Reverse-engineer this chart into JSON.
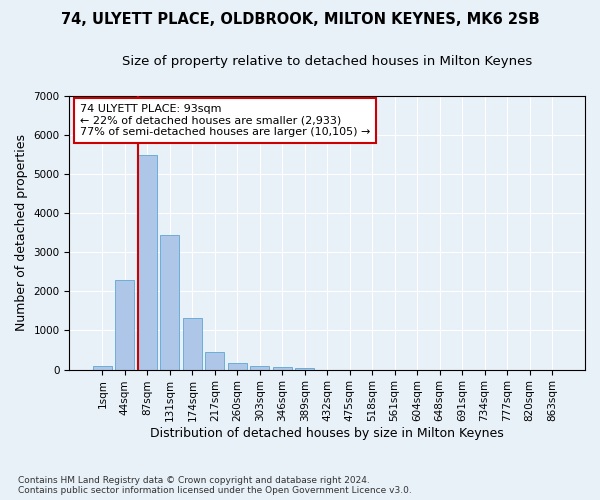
{
  "title1": "74, ULYETT PLACE, OLDBROOK, MILTON KEYNES, MK6 2SB",
  "title2": "Size of property relative to detached houses in Milton Keynes",
  "xlabel": "Distribution of detached houses by size in Milton Keynes",
  "ylabel": "Number of detached properties",
  "footnote": "Contains HM Land Registry data © Crown copyright and database right 2024.\nContains public sector information licensed under the Open Government Licence v3.0.",
  "bar_labels": [
    "1sqm",
    "44sqm",
    "87sqm",
    "131sqm",
    "174sqm",
    "217sqm",
    "260sqm",
    "303sqm",
    "346sqm",
    "389sqm",
    "432sqm",
    "475sqm",
    "518sqm",
    "561sqm",
    "604sqm",
    "648sqm",
    "691sqm",
    "734sqm",
    "777sqm",
    "820sqm",
    "863sqm"
  ],
  "bar_values": [
    80,
    2280,
    5480,
    3450,
    1320,
    460,
    165,
    90,
    55,
    30,
    0,
    0,
    0,
    0,
    0,
    0,
    0,
    0,
    0,
    0,
    0
  ],
  "bar_color": "#aec6e8",
  "bar_edge_color": "#6baed6",
  "ylim": [
    0,
    7000
  ],
  "yticks": [
    0,
    1000,
    2000,
    3000,
    4000,
    5000,
    6000,
    7000
  ],
  "vline_color": "#cc0000",
  "annotation_text": "74 ULYETT PLACE: 93sqm\n← 22% of detached houses are smaller (2,933)\n77% of semi-detached houses are larger (10,105) →",
  "annotation_box_color": "#ffffff",
  "annotation_box_edge": "#cc0000",
  "bg_color": "#e8f0f8",
  "grid_color": "#ffffff",
  "title1_fontsize": 10.5,
  "title2_fontsize": 9.5,
  "xlabel_fontsize": 9,
  "ylabel_fontsize": 9,
  "annot_fontsize": 8,
  "tick_fontsize": 7.5
}
